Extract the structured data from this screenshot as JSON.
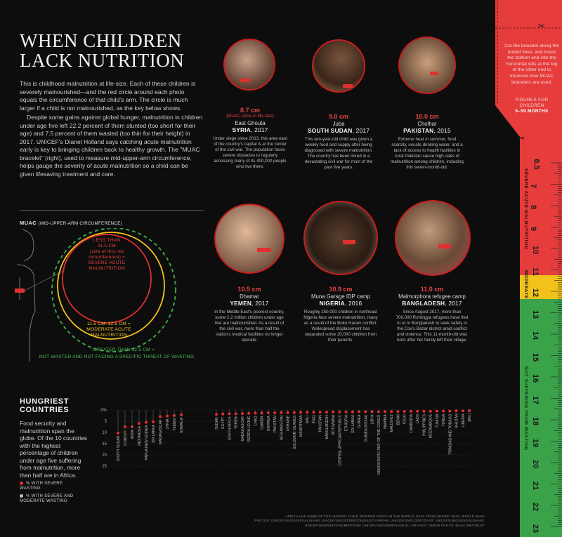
{
  "header": {
    "title_line1": "WHEN CHILDREN",
    "title_line2": "LACK NUTRITION"
  },
  "intro": {
    "p1": "This is childhood malnutrition at life-size. Each of these children is severely malnourished—and the red circle around each photo equals the circumference of that child's arm. The circle is much larger if a child is not malnourished, as the key below shows.",
    "p2": "Despite some gains against global hunger, malnutrition in children under age five left 22.2 percent of them stunted (too short for their age) and 7.5 percent of them wasted (too thin for their height) in 2017. UNICEF's Dianel Holland says catching acute malnutrition early is key to bringing children back to healthy growth. The \"MUAC bracelet\" (right), used to measure mid-upper-arm circumference, helps gauge the severity of acute malnutrition so a child can be given lifesaving treatment and care."
  },
  "muac": {
    "title": "MUAC",
    "title_sub": "(MID-UPPER-ARM CIRCUMFERENCE)",
    "key_severe": [
      "LESS THAN",
      "11.5 CM",
      "(size of this red",
      "circumference) =",
      "SEVERE ACUTE",
      "MALNUTRITION"
    ],
    "key_moderate": [
      "11.5 CM–12.5 CM =",
      "MODERATE ACUTE",
      "MALNUTRITION"
    ],
    "key_greater": "GREATER THAN 12.5 CM =",
    "key_not": "NOT WASTED AND NOT FACING A SPECIFIC THREAT OF WASTING",
    "colors": {
      "severe": "#e03030",
      "moderate": "#f2c21b",
      "normal": "#3aa34a"
    }
  },
  "cards": [
    {
      "cm": "8.7 cm",
      "sub": "(MUAC circle in life-size)",
      "loc": "East Ghouta",
      "country": "SYRIA",
      "year": "2017",
      "desc": "Under siege since 2013, this area east of the country's capital is at the center of the civil war. The population faces severe obstacles to regularly accessing many of its 400,000 people who live there."
    },
    {
      "cm": "9.0 cm",
      "sub": "",
      "loc": "Juba",
      "country": "SOUTH SUDAN",
      "year": "2017",
      "desc": "This two-year-old child was given a weekly food and supply after being diagnosed with severe malnutrition. The country has been mired in a devastating civil war for most of the past five years."
    },
    {
      "cm": "10.0 cm",
      "sub": "",
      "loc": "Cholhar",
      "country": "PAKISTAN",
      "year": "2015",
      "desc": "Extreme heat in summer, food scarcity, unsafe drinking water, and a lack of access to health facilities in rural Pakistan cause high rates of malnutrition among children, including this seven-month-old."
    },
    {
      "cm": "10.5 cm",
      "sub": "",
      "loc": "Dhamar",
      "country": "YEMEN",
      "year": "2017",
      "desc": "In the Middle East's poorest country, some 2.2 million children under age five are malnourished. As a result of the civil war, more than half the nation's medical facilities no longer operate."
    },
    {
      "cm": "10.9 cm",
      "sub": "",
      "loc": "Muna Garage IDP camp",
      "country": "NIGERIA",
      "year": "2016",
      "desc": "Roughly 250,000 children in northeast Nigeria face severe malnutrition, many as a result of the Boko Haram conflict. Widespread displacement has separated some 20,000 children from their parents."
    },
    {
      "cm": "11.0 cm",
      "sub": "",
      "loc": "Malmorphora refugee camp",
      "country": "BANGLADESH",
      "year": "2017",
      "desc": "Since August 2017, more than 700,000 Rohingya refugees have fled to ut to Bangladesh to seek safety in the Cox's Bazar district amid conflict and violence. This 11-month-old was born after her family left their village."
    }
  ],
  "hungriest": {
    "title_line1": "HUNGRIEST",
    "title_line2": "COUNTRIES",
    "text": "Food security and malnutrition span the globe. Of the 10 countries with the highest percentage of children under age five suffering from malnutrition, more than half are in Africa.",
    "legend_severe": "% WITH SEVERE WASTING",
    "legend_both": "% WITH SEVERE AND MODERATE WASTING"
  },
  "chart_data": {
    "type": "dot",
    "ylabel": "",
    "yticks": [
      "0%",
      "5",
      "10",
      "15",
      "20",
      "25"
    ],
    "ylim": [
      0,
      25
    ],
    "categories": [
      "SOUTH SUDAN",
      "DJIBOUTI",
      "INDIA",
      "INDONESIA",
      "PAPUA NEW GUINEA",
      "SRI LANKA",
      "MADAGASCAR",
      "SYRIA",
      "YEMEN",
      "SOMALIA",
      "SUDAN",
      "EGYPT",
      "SOUTH ARICA",
      "YEMEN",
      "MADAGASCAR",
      "SIERRA LEONE",
      "CHAD",
      "GAMBIA",
      "ERITREA",
      "PAKISTAN",
      "AFGHANISTAN",
      "UKRAINE",
      "SOLOMON ISLANDS",
      "MAURITANIA",
      "MALI",
      "IRAQ",
      "PAKISTAN",
      "BANGLADESH",
      "BOTSWANA",
      "CENTRAL AFRICAN REPUBLIC",
      "ETHIOPIA",
      "SRI LANKA",
      "GUINEA",
      "GUINEA-BISSAU",
      "LIBYA",
      "DEMOCRATIC REP. OF THE CONGO",
      "NAMIBIA",
      "MALDIVES",
      "BENIN",
      "TOGO",
      "CAMBODIA",
      "LAOS",
      "PHILIPPINES",
      "MOZAMBIQUE",
      "TUNISIA",
      "TONGA",
      "TRINIDAD AND TOBAGO",
      "BHUTAN",
      "LIBERIA",
      "MALI"
    ],
    "severe": [
      10.3,
      7.5,
      7.5,
      6.0,
      5.5,
      5.3,
      3.0,
      2.7,
      2.5,
      2.1,
      2.0,
      1.8,
      1.7,
      1.7,
      1.6,
      1.5,
      1.4,
      1.4,
      1.3,
      1.3,
      1.2,
      1.2,
      1.2,
      1.1,
      1.1,
      1.0,
      1.0,
      1.0,
      0.9,
      0.9,
      0.9,
      0.9,
      0.8,
      0.8,
      0.8,
      0.8,
      0.7,
      0.7,
      0.7,
      0.7,
      0.6,
      0.6,
      0.6,
      0.6,
      0.5,
      0.5,
      0.5,
      0.4,
      0.4,
      0.3
    ],
    "both": [],
    "colors": {
      "severe": "#e03030",
      "both": "#bfbfbf"
    }
  },
  "footer": {
    "line1": "AFRICA HAS SOME OF THE HIGHEST CHILD WASTING RATES IN THE WORLD; DATA FROM UNICEF, WHO, WORLD BANK",
    "line2": "PHOTOS: UNICEF/UN0152497/ALSHAMI; UNICEF/UN0157309/GONZALEZ FARRAN; UNICEF/UN0143207/ZAIDI; UNICEF/UN0226262/ALSHAMI;",
    "line3": "UNICEF/UN0054970/GILBERTSON; UNICEF/UN0160000/HAQUE | GRAPHIC: SIMON PHOTO; MUAC BRACELET"
  },
  "ruler": {
    "instructions": "Cut the bracelet along the dotted lines, and insert the bottom end into the horizontal slits at the top of the other end to measure how MUAC bracelets are used.",
    "figures": "FIGURES FOR",
    "figures_sub": "CHILDREN",
    "figures_age": "6–59 MONTHS",
    "label_severe": "SEVERE ACUTE MALNUTRITION",
    "label_moderate": "MODERATE",
    "label_not": "NOT SUFFERING FROM WASTING",
    "numbers": [
      "6.5",
      "7",
      "8",
      "9",
      "10",
      "11",
      "12",
      "13",
      "14",
      "15",
      "16",
      "17",
      "18",
      "19",
      "20",
      "21",
      "22",
      "23"
    ],
    "colors": {
      "red": "#e63c3c",
      "yellow": "#f2c21b",
      "green": "#3aa34a"
    }
  }
}
